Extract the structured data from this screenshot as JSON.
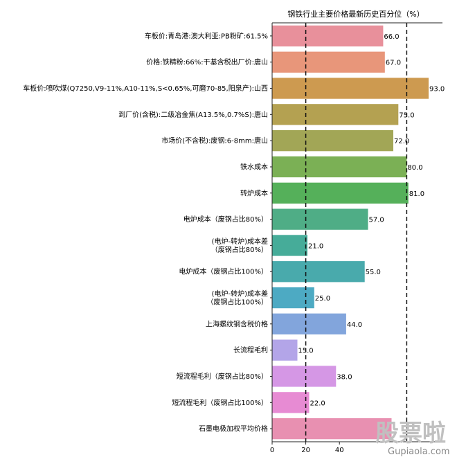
{
  "chart_data": {
    "type": "bar",
    "orientation": "horizontal",
    "title": "钢铁行业主要价格最新历史百分位（%）",
    "xlim": [
      0,
      100
    ],
    "x_ticks": [
      "0",
      "20",
      "40"
    ],
    "reference_lines": [
      20,
      80
    ],
    "grid": false,
    "categories": [
      [
        "车板价:青岛港:澳大利亚:PB粉矿:61.5%"
      ],
      [
        "价格:铁精粉:66%:干基含税出厂价:唐山"
      ],
      [
        "车板价:喷吹煤(Q7250,V9-11%,A10-11%,S<0.65%,可磨70-85,阳泉产):山西"
      ],
      [
        "到厂价(含税):二级冶金焦(A13.5%,0.7%S):唐山"
      ],
      [
        "市场价(不含税):废钢:6-8mm:唐山"
      ],
      [
        "铁水成本"
      ],
      [
        "转炉成本"
      ],
      [
        "电炉成本（废钢占比80%）"
      ],
      [
        "(电炉-转炉)成本差",
        "（废钢占比80%）"
      ],
      [
        "电炉成本（废钢占比100%）"
      ],
      [
        "(电炉-转炉)成本差",
        "（废钢占比100%）"
      ],
      [
        "上海螺纹钢含税价格"
      ],
      [
        "长流程毛利"
      ],
      [
        "短流程毛利（废钢占比80%）"
      ],
      [
        "短流程毛利（废钢占比100%）"
      ],
      [
        "石墨电极加权平均价格"
      ]
    ],
    "values": [
      66,
      67,
      93,
      75,
      72,
      80,
      81,
      57,
      21,
      55,
      25,
      44,
      15,
      38,
      22,
      71
    ],
    "value_labels": [
      "66.0",
      "67.0",
      "93.0",
      "75.0",
      "72.0",
      "80.0",
      "81.0",
      "57.0",
      "21.0",
      "55.0",
      "25.0",
      "44.0",
      "15.0",
      "38.0",
      "22.0",
      ""
    ],
    "colors": [
      "#e8909b",
      "#e8967a",
      "#cd9a50",
      "#b4a151",
      "#a2a656",
      "#7bb055",
      "#55b05a",
      "#4fad86",
      "#46ac99",
      "#49aaac",
      "#4daac3",
      "#82a5dc",
      "#b3a5e8",
      "#d597e5",
      "#e78bd3",
      "#e890b1"
    ]
  },
  "watermark": {
    "brand": "股票啦",
    "url": "Gupiaola.com"
  }
}
